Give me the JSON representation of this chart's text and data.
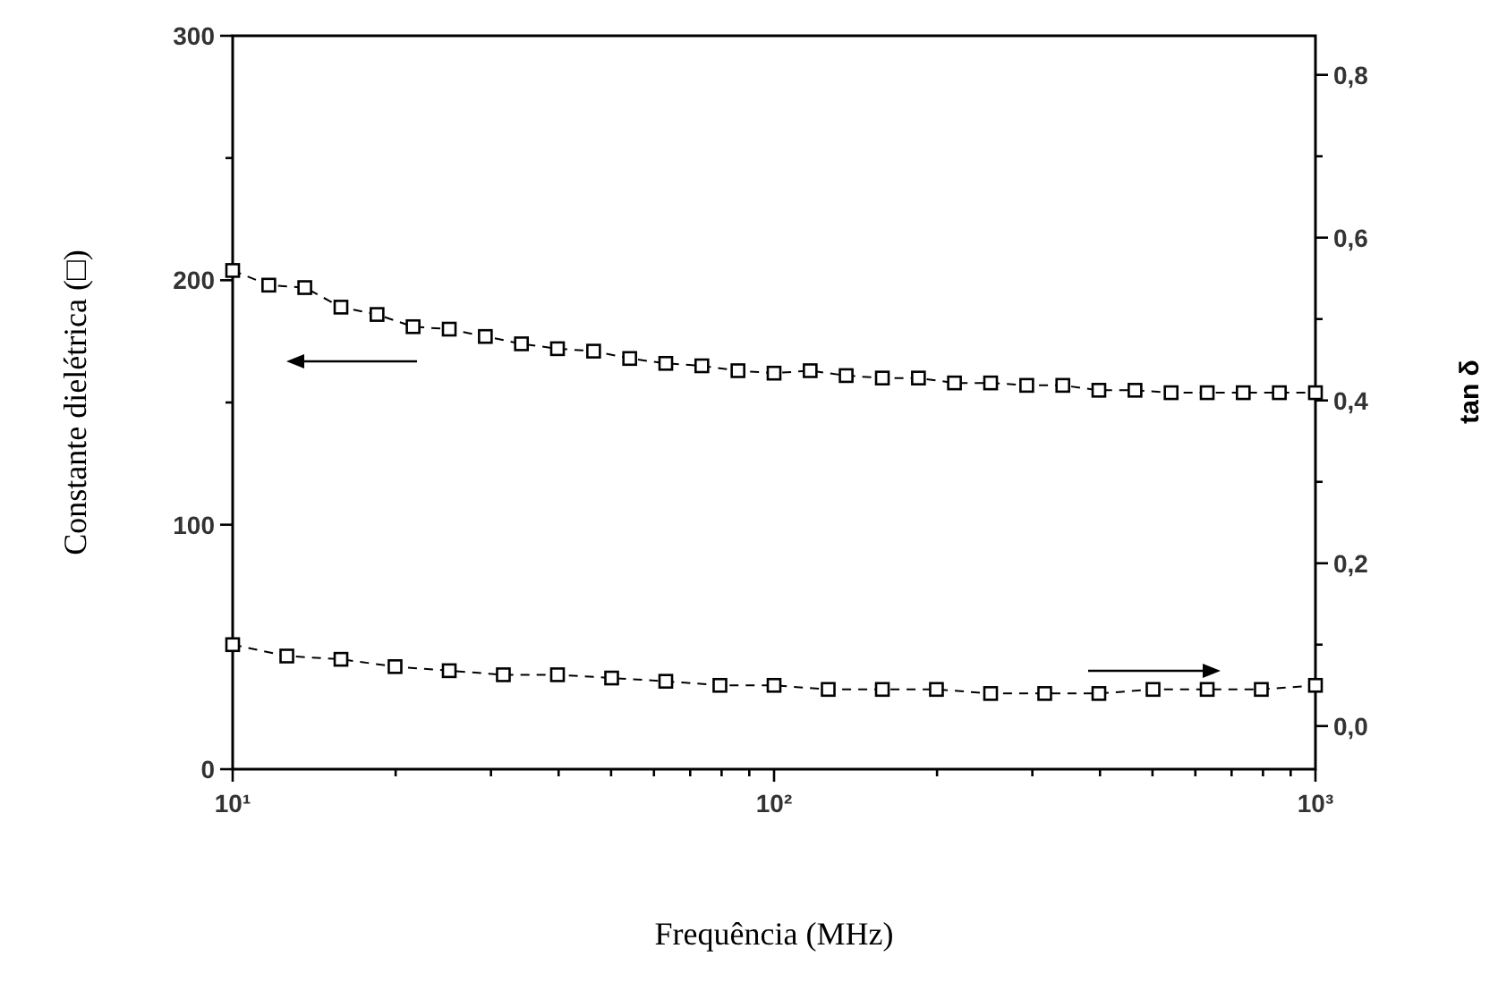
{
  "chart_data": {
    "type": "line",
    "xlabel": "Frequência (MHz)",
    "ylabel": "Constante dielétrica (□)",
    "y2label": "tan δ",
    "log": "x",
    "xlim": [
      10,
      1000
    ],
    "xticks": [
      {
        "value": 10,
        "label": "10¹"
      },
      {
        "value": 20,
        "label": null
      },
      {
        "value": 30,
        "label": null
      },
      {
        "value": 40,
        "label": null
      },
      {
        "value": 50,
        "label": null
      },
      {
        "value": 60,
        "label": null
      },
      {
        "value": 70,
        "label": null
      },
      {
        "value": 80,
        "label": null
      },
      {
        "value": 90,
        "label": null
      },
      {
        "value": 100,
        "label": "10²"
      },
      {
        "value": 200,
        "label": null
      },
      {
        "value": 300,
        "label": null
      },
      {
        "value": 400,
        "label": null
      },
      {
        "value": 500,
        "label": null
      },
      {
        "value": 600,
        "label": null
      },
      {
        "value": 700,
        "label": null
      },
      {
        "value": 800,
        "label": null
      },
      {
        "value": 900,
        "label": null
      },
      {
        "value": 1000,
        "label": "10³"
      }
    ],
    "ylim": [
      0,
      300
    ],
    "yticks": [
      0,
      {
        "value": 50,
        "label": null
      },
      100,
      {
        "value": 150,
        "label": null
      },
      200,
      {
        "value": 250,
        "label": null
      },
      300
    ],
    "y2lim": [
      -0.053,
      0.848
    ],
    "y2ticks": [
      {
        "value": 0,
        "label": "0,0"
      },
      {
        "value": 0.1,
        "label": null
      },
      {
        "value": 0.2,
        "label": "0,2"
      },
      {
        "value": 0.3,
        "label": null
      },
      {
        "value": 0.4,
        "label": "0,4"
      },
      {
        "value": 0.5,
        "label": null
      },
      {
        "value": 0.6,
        "label": "0,6"
      },
      {
        "value": 0.7,
        "label": null
      },
      {
        "value": 0.8,
        "label": "0,8"
      }
    ],
    "marker": "square",
    "line_style": "dashed",
    "grid": false,
    "series": [
      {
        "color": "#000000",
        "x": [
          10,
          11.66,
          13.59,
          15.85,
          18.48,
          21.54,
          25.12,
          29.29,
          34.15,
          39.81,
          46.42,
          54.12,
          63.1,
          73.56,
          85.77,
          100,
          116.6,
          135.9,
          158.5,
          184.8,
          215.4,
          251.2,
          292.9,
          341.5,
          398.1,
          464.2,
          541.2,
          631,
          735.6,
          857.7,
          1000
        ],
        "values": [
          204,
          198,
          197,
          189,
          186,
          181,
          180,
          177,
          174,
          172,
          171,
          168,
          166,
          165,
          163,
          162,
          163,
          161,
          160,
          160,
          158,
          158,
          157,
          157,
          155,
          155,
          154,
          154,
          154,
          154,
          154
        ]
      },
      {
        "color": "#000000",
        "axis": "y2",
        "x": [
          10,
          12.59,
          15.85,
          19.95,
          25.12,
          31.62,
          39.81,
          50.12,
          63.1,
          79.43,
          100,
          125.9,
          158.5,
          199.5,
          251.2,
          316.2,
          398.1,
          501.2,
          631,
          794.3,
          1000
        ],
        "values": [
          0.1,
          0.086,
          0.082,
          0.073,
          0.068,
          0.063,
          0.063,
          0.059,
          0.055,
          0.05,
          0.05,
          0.045,
          0.045,
          0.045,
          0.04,
          0.04,
          0.04,
          0.045,
          0.045,
          0.045,
          0.05
        ]
      }
    ]
  }
}
